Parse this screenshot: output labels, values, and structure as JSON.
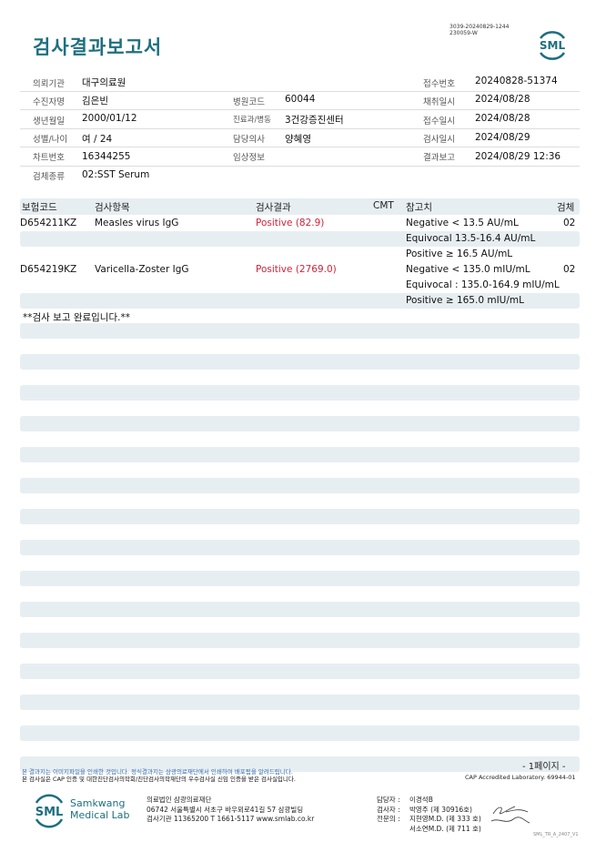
{
  "header": {
    "title": "검사결과보고서",
    "doc_id_line1": "3039-20240829-1244",
    "doc_id_line2": "230059-W",
    "logo": "SML"
  },
  "info": {
    "requester_label": "의뢰기관",
    "requester": "대구의료원",
    "receipt_no_label": "접수번호",
    "receipt_no": "20240828-51374",
    "patient_label": "수진자명",
    "patient": "김은빈",
    "hospital_code_label": "병원코드",
    "hospital_code": "60044",
    "collect_label": "채취일시",
    "collect": "2024/08/28",
    "dob_label": "생년월일",
    "dob": "2000/01/12",
    "dept_label": "진료과/병동",
    "dept": "3건강증진센터",
    "receipt_date_label": "접수일시",
    "receipt_date": "2024/08/28",
    "sex_age_label": "성별/나이",
    "sex_age": "여 / 24",
    "doctor_label": "담당의사",
    "doctor": "양혜영",
    "test_date_label": "검사일시",
    "test_date": "2024/08/29",
    "chart_label": "차트번호",
    "chart": "16344255",
    "clinical_label": "임상정보",
    "clinical": "",
    "report_label": "결과보고",
    "report": "2024/08/29 12:36",
    "specimen_label": "검체종류",
    "specimen": "02:SST Serum"
  },
  "table": {
    "headers": {
      "code": "보험코드",
      "item": "검사항목",
      "result": "검사결과",
      "cmt": "CMT",
      "ref": "참고치",
      "specimen": "검체"
    },
    "rows": [
      {
        "code": "D654211KZ",
        "item": "Measles virus IgG",
        "result": "Positive (82.9)",
        "ref": [
          "Negative < 13.5 AU/mL",
          "Equivocal 13.5-16.4 AU/mL",
          "Positive ≥ 16.5 AU/mL"
        ],
        "specimen": "02"
      },
      {
        "code": "D654219KZ",
        "item": "Varicella-Zoster IgG",
        "result": "Positive (2769.0)",
        "ref": [
          "Negative < 135.0 mIU/mL",
          "Equivocal : 135.0-164.9 mIU/mL",
          "Positive ≥ 165.0 mIU/mL"
        ],
        "specimen": "02"
      }
    ],
    "comment": "**검사 보고 완료입니다.**"
  },
  "footer": {
    "page": "- 1페이지 -",
    "notice1": "본 결과지는 이미지파일을 인쇄한 것입니다. 정식결과지는 삼광의료재단에서 인쇄하여 배포됨을 알려드립니다.",
    "notice2": "본 검사실은 CAP 인증 및 대한진단검사의학회/진단검사의학재단의 우수검사실 신임 인증을 받은 검사실입니다.",
    "cap": "CAP Accredited Laboratory. 69944-01",
    "logo_line1": "Samkwang",
    "logo_line2": "Medical Lab",
    "org": "의료법인 삼광의료재단",
    "address": "06742 서울특별시 서초구 바우뫼로41길 57 삼광빌딩",
    "contact": "검사기관 11365200 T 1661-5117 www.smlab.co.kr",
    "staff": [
      {
        "label": "담당자 :",
        "name": "이경석B"
      },
      {
        "label": "검사자 :",
        "name": "박영주 (제 30916호)"
      },
      {
        "label": "전문의 :",
        "name": "지현영M.D. (제 333 호)"
      },
      {
        "label": "",
        "name": "서소연M.D. (제 711 호)"
      }
    ],
    "form_id": "SML_TR_A_2407_V1"
  },
  "colors": {
    "accent": "#1e6f80",
    "positive": "#d0243a",
    "stripe": "#e7eef2"
  }
}
